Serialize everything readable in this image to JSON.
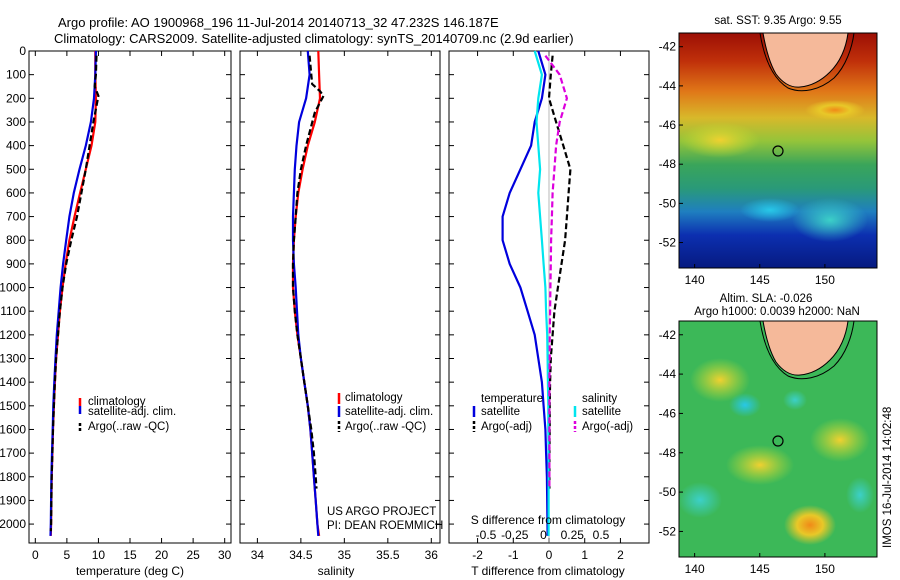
{
  "header": {
    "title_line1": "Argo profile: AO 1900968_196 11-Jul-2014 20140713_32 47.232S 146.187E",
    "title_line2": "Climatology: CARS2009. Satellite-adjusted climatology: synTS_20140709.nc (2.9d earlier)"
  },
  "colors": {
    "climatology": "#ff0000",
    "satellite": "#0000dd",
    "argo": "#000000",
    "satellite_salinity": "#00e5ee",
    "argo_adj_salinity": "#dd00dd",
    "land": "#f5b99a"
  },
  "annotation": {
    "project": "US ARGO PROJECT",
    "pi": "PI: DEAN ROEMMICH"
  },
  "side_label": "IMOS 16-Jul-2014 14:02:48",
  "chart_data": [
    {
      "type": "line",
      "id": "temperature",
      "xlabel": "temperature (deg C)",
      "xlim": [
        -1,
        31
      ],
      "xticks": [
        0,
        5,
        10,
        15,
        20,
        25,
        30
      ],
      "ylim": [
        0,
        2080
      ],
      "yticks": [
        0,
        100,
        200,
        300,
        400,
        500,
        600,
        700,
        800,
        900,
        1000,
        1100,
        1200,
        1300,
        1400,
        1500,
        1600,
        1700,
        1800,
        1900,
        2000
      ],
      "legend": [
        "climatology",
        "satellite-adj. clim.",
        "Argo(..raw -QC)"
      ],
      "series": [
        {
          "name": "climatology",
          "color": "#ff0000",
          "dash": "",
          "x": [
            9.5,
            9.5,
            9.6,
            9.5,
            8.9,
            8.0,
            7.1,
            6.2,
            5.4,
            4.8,
            4.3,
            3.9,
            3.6,
            3.3,
            3.1,
            2.95,
            2.8,
            2.7,
            2.6,
            2.55,
            2.5,
            2.45
          ],
          "y": [
            0,
            100,
            200,
            300,
            400,
            500,
            600,
            700,
            800,
            900,
            1000,
            1100,
            1200,
            1300,
            1400,
            1500,
            1600,
            1700,
            1800,
            1900,
            2000,
            2050
          ]
        },
        {
          "name": "satellite-adj. clim.",
          "color": "#0000dd",
          "dash": "",
          "x": [
            9.6,
            9.5,
            9.3,
            8.8,
            8.0,
            7.0,
            6.1,
            5.4,
            4.9,
            4.4,
            4.0,
            3.7,
            3.4,
            3.2,
            3.0,
            2.85,
            2.75,
            2.65,
            2.55,
            2.5,
            2.45,
            2.4
          ],
          "y": [
            0,
            100,
            200,
            300,
            400,
            500,
            600,
            700,
            800,
            900,
            1000,
            1100,
            1200,
            1300,
            1400,
            1500,
            1600,
            1700,
            1800,
            1900,
            2000,
            2050
          ]
        },
        {
          "name": "Argo(..raw -QC)",
          "color": "#000000",
          "dash": "6,3",
          "x": [
            9.7,
            9.6,
            9.4,
            10.0,
            9.2,
            8.6,
            8.0,
            7.3,
            6.6,
            5.7,
            4.9,
            4.3,
            3.9,
            3.6,
            3.3,
            3.1,
            2.95,
            2.8,
            2.7,
            2.6,
            2.55,
            2.5,
            2.45
          ],
          "y": [
            20,
            100,
            150,
            190,
            300,
            400,
            500,
            600,
            700,
            800,
            900,
            1000,
            1100,
            1200,
            1300,
            1400,
            1500,
            1600,
            1700,
            1800,
            1900,
            2000,
            2030
          ]
        }
      ]
    },
    {
      "type": "line",
      "id": "salinity",
      "xlabel": "salinity",
      "xlim": [
        33.8,
        36.1
      ],
      "xticks": [
        34,
        34.5,
        35,
        35.5,
        36
      ],
      "ylim": [
        0,
        2080
      ],
      "legend": [
        "climatology",
        "satellite-adj. clim.",
        "Argo(..raw -QC)"
      ],
      "series": [
        {
          "name": "climatology",
          "color": "#ff0000",
          "dash": "",
          "x": [
            34.7,
            34.71,
            34.72,
            34.66,
            34.58,
            34.52,
            34.47,
            34.44,
            34.42,
            34.41,
            34.41,
            34.43,
            34.46,
            34.5,
            34.54,
            34.58,
            34.61,
            34.63,
            34.65,
            34.67,
            34.69,
            34.71
          ],
          "y": [
            0,
            100,
            200,
            300,
            400,
            500,
            600,
            700,
            800,
            900,
            1000,
            1100,
            1200,
            1300,
            1400,
            1500,
            1600,
            1700,
            1800,
            1900,
            2000,
            2050
          ]
        },
        {
          "name": "satellite-adj. clim.",
          "color": "#0000dd",
          "dash": "",
          "x": [
            34.58,
            34.6,
            34.56,
            34.48,
            34.45,
            34.43,
            34.42,
            34.41,
            34.41,
            34.42,
            34.44,
            34.47,
            34.5,
            34.54,
            34.58,
            34.61,
            34.63,
            34.65,
            34.67,
            34.69,
            34.7
          ],
          "y": [
            0,
            100,
            200,
            300,
            400,
            500,
            600,
            700,
            800,
            900,
            1000,
            1200,
            1300,
            1400,
            1500,
            1600,
            1700,
            1800,
            1900,
            2000,
            2050
          ]
        },
        {
          "name": "Argo(..raw -QC)",
          "color": "#000000",
          "dash": "6,3",
          "x": [
            34.6,
            34.62,
            34.63,
            34.72,
            34.76,
            34.66,
            34.56,
            34.5,
            34.46,
            34.44,
            34.42,
            34.41,
            34.41,
            34.43,
            34.46,
            34.5,
            34.54,
            34.58,
            34.62,
            34.65,
            34.67,
            34.68
          ],
          "y": [
            20,
            100,
            140,
            170,
            190,
            260,
            400,
            500,
            600,
            700,
            800,
            900,
            1000,
            1100,
            1200,
            1300,
            1400,
            1500,
            1600,
            1700,
            1800,
            1850
          ]
        }
      ]
    },
    {
      "type": "line",
      "id": "difference",
      "xlabel": "T difference from climatology",
      "xlabel_top": "S difference from climatology",
      "xlim": [
        -2.8,
        2.8
      ],
      "xticks": [
        -2,
        -1,
        0,
        1,
        2
      ],
      "xticks_top": [
        "-0.5",
        "-0.25",
        "0",
        "0.25",
        "0.5"
      ],
      "ylim": [
        0,
        2080
      ],
      "legend_temperature": {
        "title": "temperature",
        "entries": [
          "satellite",
          "Argo(-adj)"
        ]
      },
      "legend_salinity": {
        "title": "salinity",
        "entries": [
          "satellite",
          "Argo(-adj)"
        ]
      },
      "series": [
        {
          "name": "temperature satellite",
          "color": "#0000dd",
          "dash": "",
          "x": [
            -0.3,
            -0.1,
            -0.2,
            -0.4,
            -0.5,
            -0.8,
            -1.1,
            -1.3,
            -1.3,
            -1.1,
            -0.8,
            -0.6,
            -0.4,
            -0.3,
            -0.2,
            -0.15,
            -0.1,
            -0.08,
            -0.06,
            -0.05,
            -0.04
          ],
          "y": [
            0,
            100,
            200,
            300,
            400,
            500,
            600,
            700,
            800,
            900,
            1000,
            1100,
            1200,
            1300,
            1400,
            1500,
            1600,
            1700,
            1800,
            1900,
            2050
          ]
        },
        {
          "name": "temperature Argo(-adj)",
          "color": "#000000",
          "dash": "6,3",
          "x": [
            0.1,
            0.05,
            0.0,
            0.2,
            0.4,
            0.6,
            0.55,
            0.5,
            0.45,
            0.35,
            0.25,
            0.15,
            0.1,
            0.05,
            0.03,
            0.02,
            0.02,
            0.01,
            0.01,
            0.01
          ],
          "y": [
            20,
            100,
            200,
            300,
            400,
            500,
            600,
            700,
            800,
            900,
            1000,
            1100,
            1200,
            1300,
            1400,
            1500,
            1600,
            1700,
            1800,
            1850
          ]
        },
        {
          "name": "salinity satellite",
          "color": "#00e5ee",
          "dash": "",
          "x": [
            -0.4,
            -0.2,
            -0.3,
            -0.35,
            -0.3,
            -0.25,
            -0.3,
            -0.25,
            -0.2,
            -0.15,
            -0.1,
            -0.08,
            -0.05,
            -0.04,
            -0.03,
            -0.02,
            -0.02,
            -0.01,
            -0.01,
            -0.01
          ],
          "y": [
            0,
            100,
            200,
            300,
            400,
            500,
            600,
            700,
            800,
            900,
            1000,
            1100,
            1200,
            1300,
            1400,
            1500,
            1600,
            1700,
            1800,
            2050
          ]
        },
        {
          "name": "salinity Argo(-adj)",
          "color": "#dd00dd",
          "dash": "6,3",
          "x": [
            -0.1,
            0.3,
            0.5,
            0.3,
            0.2,
            0.15,
            0.1,
            0.08,
            0.06,
            0.05,
            0.04,
            0.03,
            0.02,
            0.02,
            0.01,
            0.01,
            0.01,
            0.01
          ],
          "y": [
            20,
            100,
            200,
            300,
            400,
            500,
            600,
            700,
            800,
            900,
            1000,
            1100,
            1200,
            1300,
            1400,
            1500,
            1600,
            1850
          ]
        }
      ]
    },
    {
      "type": "heatmap",
      "id": "sst_map",
      "title": "sat. SST: 9.35  Argo: 9.55",
      "xticks": [
        140,
        145,
        150
      ],
      "yticks": [
        -42,
        -44,
        -46,
        -48,
        -50,
        -52
      ],
      "xlim": [
        138.8,
        154
      ],
      "ylim": [
        -53.3,
        -41.3
      ],
      "float_position": {
        "lon": 146.187,
        "lat": -47.232
      }
    },
    {
      "type": "heatmap",
      "id": "sla_map",
      "title_line1": "Altim. SLA: -0.026",
      "title_line2": "Argo h1000: 0.0039  h2000: NaN",
      "xticks": [
        140,
        145,
        150
      ],
      "yticks": [
        -42,
        -44,
        -46,
        -48,
        -50,
        -52
      ],
      "xlim": [
        138.8,
        154
      ],
      "ylim": [
        -53.3,
        -41.3
      ],
      "float_position": {
        "lon": 146.187,
        "lat": -47.232
      }
    }
  ]
}
